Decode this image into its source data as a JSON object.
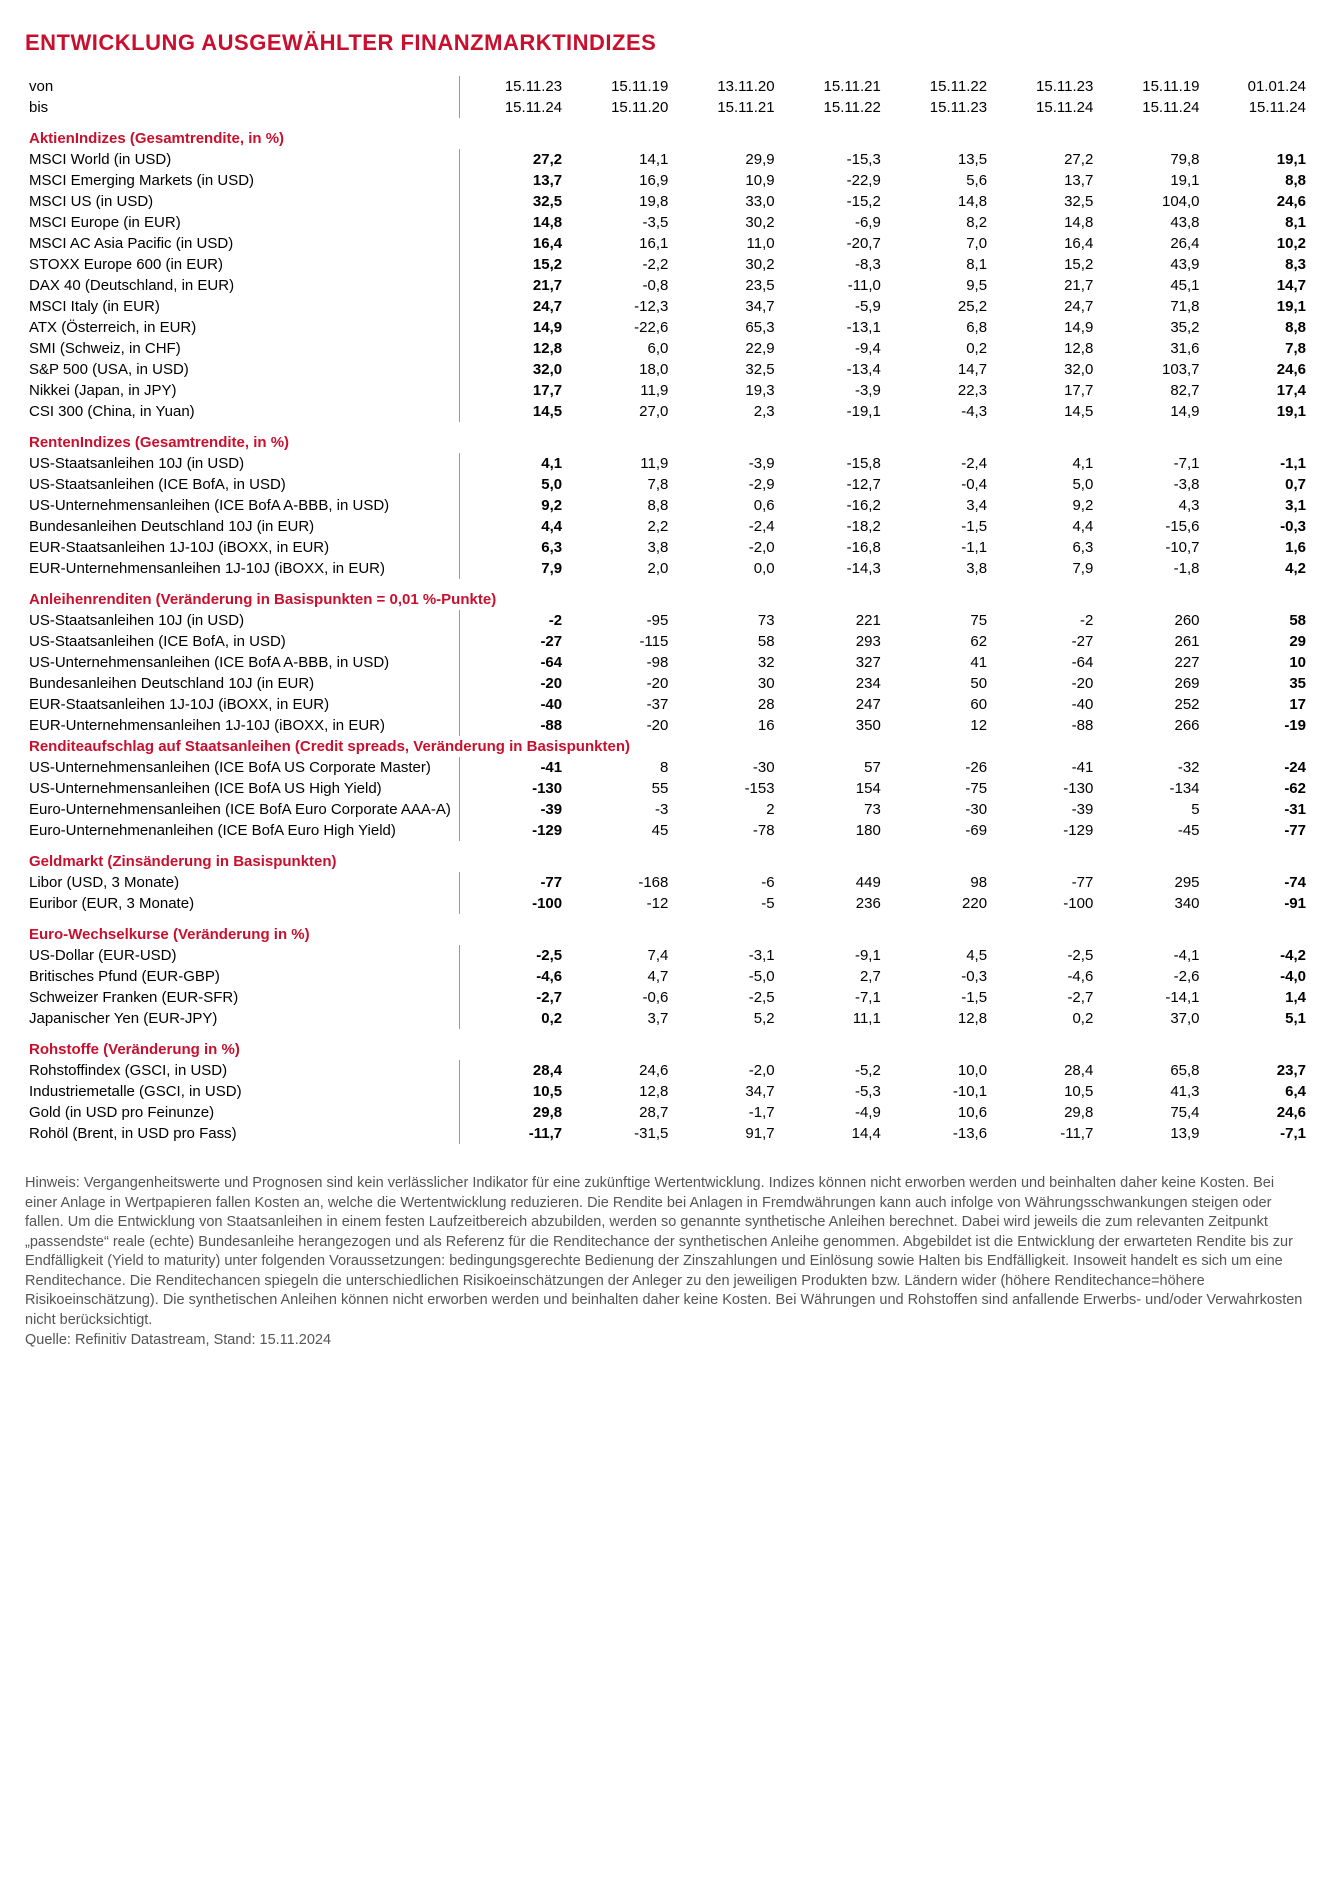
{
  "title": "ENTWICKLUNG AUSGEWÄHLTER FINANZMARKTINDIZES",
  "header": {
    "von": "von",
    "bis": "bis",
    "dates_from": [
      "15.11.23",
      "15.11.19",
      "13.11.20",
      "15.11.21",
      "15.11.22",
      "15.11.23",
      "15.11.19",
      "01.01.24"
    ],
    "dates_to": [
      "15.11.24",
      "15.11.20",
      "15.11.21",
      "15.11.22",
      "15.11.23",
      "15.11.24",
      "15.11.24",
      "15.11.24"
    ],
    "bold_cols": [
      0,
      7
    ]
  },
  "sections": [
    {
      "title": "AktienIndizes (Gesamtrendite, in %)",
      "rows": [
        {
          "label": "MSCI World (in USD)",
          "v": [
            "27,2",
            "14,1",
            "29,9",
            "-15,3",
            "13,5",
            "27,2",
            "79,8",
            "19,1"
          ]
        },
        {
          "label": "MSCI Emerging Markets (in USD)",
          "v": [
            "13,7",
            "16,9",
            "10,9",
            "-22,9",
            "5,6",
            "13,7",
            "19,1",
            "8,8"
          ]
        },
        {
          "label": "MSCI US (in USD)",
          "v": [
            "32,5",
            "19,8",
            "33,0",
            "-15,2",
            "14,8",
            "32,5",
            "104,0",
            "24,6"
          ]
        },
        {
          "label": "MSCI Europe (in EUR)",
          "v": [
            "14,8",
            "-3,5",
            "30,2",
            "-6,9",
            "8,2",
            "14,8",
            "43,8",
            "8,1"
          ]
        },
        {
          "label": "MSCI AC Asia Pacific (in USD)",
          "v": [
            "16,4",
            "16,1",
            "11,0",
            "-20,7",
            "7,0",
            "16,4",
            "26,4",
            "10,2"
          ]
        },
        {
          "label": "STOXX Europe 600 (in EUR)",
          "v": [
            "15,2",
            "-2,2",
            "30,2",
            "-8,3",
            "8,1",
            "15,2",
            "43,9",
            "8,3"
          ]
        },
        {
          "label": "DAX 40 (Deutschland, in EUR)",
          "v": [
            "21,7",
            "-0,8",
            "23,5",
            "-11,0",
            "9,5",
            "21,7",
            "45,1",
            "14,7"
          ]
        },
        {
          "label": "MSCI Italy (in EUR)",
          "v": [
            "24,7",
            "-12,3",
            "34,7",
            "-5,9",
            "25,2",
            "24,7",
            "71,8",
            "19,1"
          ]
        },
        {
          "label": "ATX (Österreich, in EUR)",
          "v": [
            "14,9",
            "-22,6",
            "65,3",
            "-13,1",
            "6,8",
            "14,9",
            "35,2",
            "8,8"
          ]
        },
        {
          "label": "SMI (Schweiz, in CHF)",
          "v": [
            "12,8",
            "6,0",
            "22,9",
            "-9,4",
            "0,2",
            "12,8",
            "31,6",
            "7,8"
          ]
        },
        {
          "label": "S&P 500 (USA, in USD)",
          "v": [
            "32,0",
            "18,0",
            "32,5",
            "-13,4",
            "14,7",
            "32,0",
            "103,7",
            "24,6"
          ]
        },
        {
          "label": "Nikkei (Japan, in JPY)",
          "v": [
            "17,7",
            "11,9",
            "19,3",
            "-3,9",
            "22,3",
            "17,7",
            "82,7",
            "17,4"
          ]
        },
        {
          "label": "CSI 300 (China, in Yuan)",
          "v": [
            "14,5",
            "27,0",
            "2,3",
            "-19,1",
            "-4,3",
            "14,5",
            "14,9",
            "19,1"
          ]
        }
      ]
    },
    {
      "title": "RentenIndizes (Gesamtrendite, in %)",
      "rows": [
        {
          "label": "US-Staatsanleihen 10J (in USD)",
          "v": [
            "4,1",
            "11,9",
            "-3,9",
            "-15,8",
            "-2,4",
            "4,1",
            "-7,1",
            "-1,1"
          ]
        },
        {
          "label": "US-Staatsanleihen (ICE BofA, in USD)",
          "v": [
            "5,0",
            "7,8",
            "-2,9",
            "-12,7",
            "-0,4",
            "5,0",
            "-3,8",
            "0,7"
          ]
        },
        {
          "label": "US-Unternehmensanleihen (ICE BofA A-BBB, in USD)",
          "v": [
            "9,2",
            "8,8",
            "0,6",
            "-16,2",
            "3,4",
            "9,2",
            "4,3",
            "3,1"
          ]
        },
        {
          "label": "Bundesanleihen Deutschland 10J (in EUR)",
          "v": [
            "4,4",
            "2,2",
            "-2,4",
            "-18,2",
            "-1,5",
            "4,4",
            "-15,6",
            "-0,3"
          ]
        },
        {
          "label": "EUR-Staatsanleihen 1J-10J (iBOXX, in EUR)",
          "v": [
            "6,3",
            "3,8",
            "-2,0",
            "-16,8",
            "-1,1",
            "6,3",
            "-10,7",
            "1,6"
          ]
        },
        {
          "label": "EUR-Unternehmensanleihen 1J-10J (iBOXX, in EUR)",
          "v": [
            "7,9",
            "2,0",
            "0,0",
            "-14,3",
            "3,8",
            "7,9",
            "-1,8",
            "4,2"
          ]
        }
      ]
    },
    {
      "title": "Anleihenrenditen (Veränderung in Basispunkten = 0,01 %-Punkte)",
      "rows": [
        {
          "label": "US-Staatsanleihen 10J (in USD)",
          "v": [
            "-2",
            "-95",
            "73",
            "221",
            "75",
            "-2",
            "260",
            "58"
          ]
        },
        {
          "label": "US-Staatsanleihen (ICE BofA, in USD)",
          "v": [
            "-27",
            "-115",
            "58",
            "293",
            "62",
            "-27",
            "261",
            "29"
          ]
        },
        {
          "label": "US-Unternehmensanleihen (ICE BofA A-BBB, in USD)",
          "v": [
            "-64",
            "-98",
            "32",
            "327",
            "41",
            "-64",
            "227",
            "10"
          ]
        },
        {
          "label": "Bundesanleihen Deutschland 10J (in EUR)",
          "v": [
            "-20",
            "-20",
            "30",
            "234",
            "50",
            "-20",
            "269",
            "35"
          ]
        },
        {
          "label": "EUR-Staatsanleihen 1J-10J (iBOXX, in EUR)",
          "v": [
            "-40",
            "-37",
            "28",
            "247",
            "60",
            "-40",
            "252",
            "17"
          ]
        },
        {
          "label": "EUR-Unternehmensanleihen 1J-10J (iBOXX, in EUR)",
          "v": [
            "-88",
            "-20",
            "16",
            "350",
            "12",
            "-88",
            "266",
            "-19"
          ]
        }
      ]
    },
    {
      "title": "Renditeaufschlag auf Staatsanleihen (Credit spreads, Veränderung in Basispunkten)",
      "tight": true,
      "rows": [
        {
          "label": "US-Unternehmensanleihen (ICE BofA US Corporate Master)",
          "v": [
            "-41",
            "8",
            "-30",
            "57",
            "-26",
            "-41",
            "-32",
            "-24"
          ]
        },
        {
          "label": "US-Unternehmensanleihen (ICE BofA US High Yield)",
          "v": [
            "-130",
            "55",
            "-153",
            "154",
            "-75",
            "-130",
            "-134",
            "-62"
          ]
        },
        {
          "label": "Euro-Unternehmensanleihen (ICE BofA Euro Corporate AAA-A)",
          "v": [
            "-39",
            "-3",
            "2",
            "73",
            "-30",
            "-39",
            "5",
            "-31"
          ]
        },
        {
          "label": "Euro-Unternehmenanleihen (ICE BofA Euro High Yield)",
          "v": [
            "-129",
            "45",
            "-78",
            "180",
            "-69",
            "-129",
            "-45",
            "-77"
          ]
        }
      ]
    },
    {
      "title": "Geldmarkt (Zinsänderung in Basispunkten)",
      "rows": [
        {
          "label": "Libor (USD, 3 Monate)",
          "v": [
            "-77",
            "-168",
            "-6",
            "449",
            "98",
            "-77",
            "295",
            "-74"
          ]
        },
        {
          "label": "Euribor (EUR, 3 Monate)",
          "v": [
            "-100",
            "-12",
            "-5",
            "236",
            "220",
            "-100",
            "340",
            "-91"
          ]
        }
      ]
    },
    {
      "title": "Euro-Wechselkurse (Veränderung in %)",
      "rows": [
        {
          "label": "US-Dollar (EUR-USD)",
          "v": [
            "-2,5",
            "7,4",
            "-3,1",
            "-9,1",
            "4,5",
            "-2,5",
            "-4,1",
            "-4,2"
          ]
        },
        {
          "label": "Britisches Pfund (EUR-GBP)",
          "v": [
            "-4,6",
            "4,7",
            "-5,0",
            "2,7",
            "-0,3",
            "-4,6",
            "-2,6",
            "-4,0"
          ]
        },
        {
          "label": "Schweizer Franken (EUR-SFR)",
          "v": [
            "-2,7",
            "-0,6",
            "-2,5",
            "-7,1",
            "-1,5",
            "-2,7",
            "-14,1",
            "1,4"
          ]
        },
        {
          "label": "Japanischer Yen (EUR-JPY)",
          "v": [
            "0,2",
            "3,7",
            "5,2",
            "11,1",
            "12,8",
            "0,2",
            "37,0",
            "5,1"
          ]
        }
      ]
    },
    {
      "title": "Rohstoffe (Veränderung in %)",
      "rows": [
        {
          "label": "Rohstoffindex (GSCI, in USD)",
          "v": [
            "28,4",
            "24,6",
            "-2,0",
            "-5,2",
            "10,0",
            "28,4",
            "65,8",
            "23,7"
          ]
        },
        {
          "label": "Industriemetalle (GSCI, in USD)",
          "v": [
            "10,5",
            "12,8",
            "34,7",
            "-5,3",
            "-10,1",
            "10,5",
            "41,3",
            "6,4"
          ]
        },
        {
          "label": "Gold (in USD pro Feinunze)",
          "v": [
            "29,8",
            "28,7",
            "-1,7",
            "-4,9",
            "10,6",
            "29,8",
            "75,4",
            "24,6"
          ]
        },
        {
          "label": "Rohöl (Brent, in USD pro Fass)",
          "v": [
            "-11,7",
            "-31,5",
            "91,7",
            "14,4",
            "-13,6",
            "-11,7",
            "13,9",
            "-7,1"
          ]
        }
      ]
    }
  ],
  "footnote": "Hinweis: Vergangenheitswerte und Prognosen sind kein verlässlicher Indikator für eine zukünftige Wertentwicklung. Indizes können nicht erworben werden und beinhalten daher keine Kosten. Bei einer Anlage in Wertpapieren fallen Kosten an, welche die Wertentwicklung reduzieren. Die Rendite bei Anlagen in Fremdwährungen kann auch infolge von Währungsschwankungen steigen oder fallen. Um die Entwicklung von Staatsanleihen in einem festen Laufzeitbereich abzubilden, werden so genannte synthetische Anleihen berechnet. Dabei wird jeweils die zum relevanten Zeitpunkt „passendste“ reale (echte) Bundesanleihe herangezogen und als Referenz für die Renditechance der synthetischen Anleihe genommen. Abgebildet ist die Entwicklung der erwarteten Rendite bis zur Endfälligkeit (Yield to maturity) unter folgenden Voraussetzungen: bedingungsgerechte Bedienung der Zinszahlungen und Einlösung sowie Halten bis Endfälligkeit. Insoweit handelt es sich um eine Renditechance. Die Renditechancen spiegeln die unterschiedlichen Risikoeinschätzungen der Anleger zu den jeweiligen Produkten bzw. Ländern wider (höhere Renditechance=höhere Risikoeinschätzung). Die synthetischen Anleihen können nicht erworben werden und beinhalten daher keine Kosten. Bei Währungen und Rohstoffen sind anfallende Erwerbs- und/oder Verwahrkosten nicht berücksichtigt.",
  "source": "Quelle: Refinitiv Datastream, Stand: 15.11.2024",
  "style": {
    "accent": "#c8102e",
    "text": "#000000",
    "footnote_color": "#555555",
    "border": "#999999"
  }
}
